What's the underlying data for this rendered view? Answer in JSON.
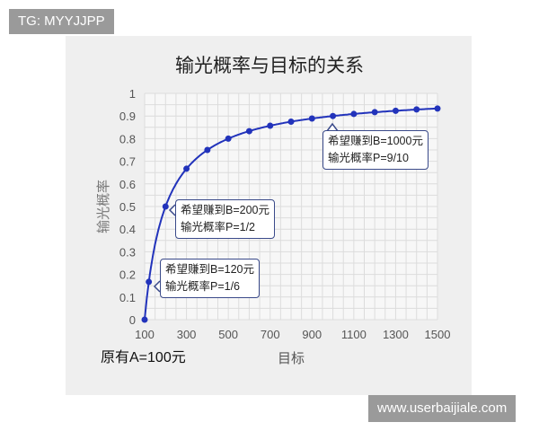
{
  "watermarks": {
    "top_left": "TG: MYYJJPP",
    "bottom_right": "www.userbaijiale.com"
  },
  "chart_data": {
    "type": "line",
    "title": "输光概率与目标的关系",
    "xlabel": "目标",
    "ylabel": "输光概率",
    "note": "原有A=100元",
    "xlim": [
      100,
      1500
    ],
    "ylim": [
      0,
      1
    ],
    "xticks": [
      "100",
      "300",
      "500",
      "700",
      "900",
      "1100",
      "1300",
      "1500"
    ],
    "yticks": [
      "0",
      "0.1",
      "0.2",
      "0.3",
      "0.4",
      "0.5",
      "0.6",
      "0.7",
      "0.8",
      "0.9",
      "1"
    ],
    "grid": true,
    "line_color": "#2233bb",
    "x": [
      100,
      120,
      200,
      300,
      400,
      500,
      600,
      700,
      800,
      900,
      1000,
      1100,
      1200,
      1300,
      1400,
      1500
    ],
    "y": [
      0,
      0.167,
      0.5,
      0.667,
      0.75,
      0.8,
      0.833,
      0.857,
      0.875,
      0.889,
      0.9,
      0.909,
      0.917,
      0.923,
      0.929,
      0.933
    ],
    "annotations": [
      {
        "x": 120,
        "y": 0.167,
        "line1": "希望赚到B=120元",
        "line2": "输光概率P=1/6"
      },
      {
        "x": 200,
        "y": 0.5,
        "line1": "希望赚到B=200元",
        "line2": "输光概率P=1/2"
      },
      {
        "x": 1000,
        "y": 0.9,
        "line1": "希望赚到B=1000元",
        "line2": "输光概率P=9/10"
      }
    ]
  }
}
